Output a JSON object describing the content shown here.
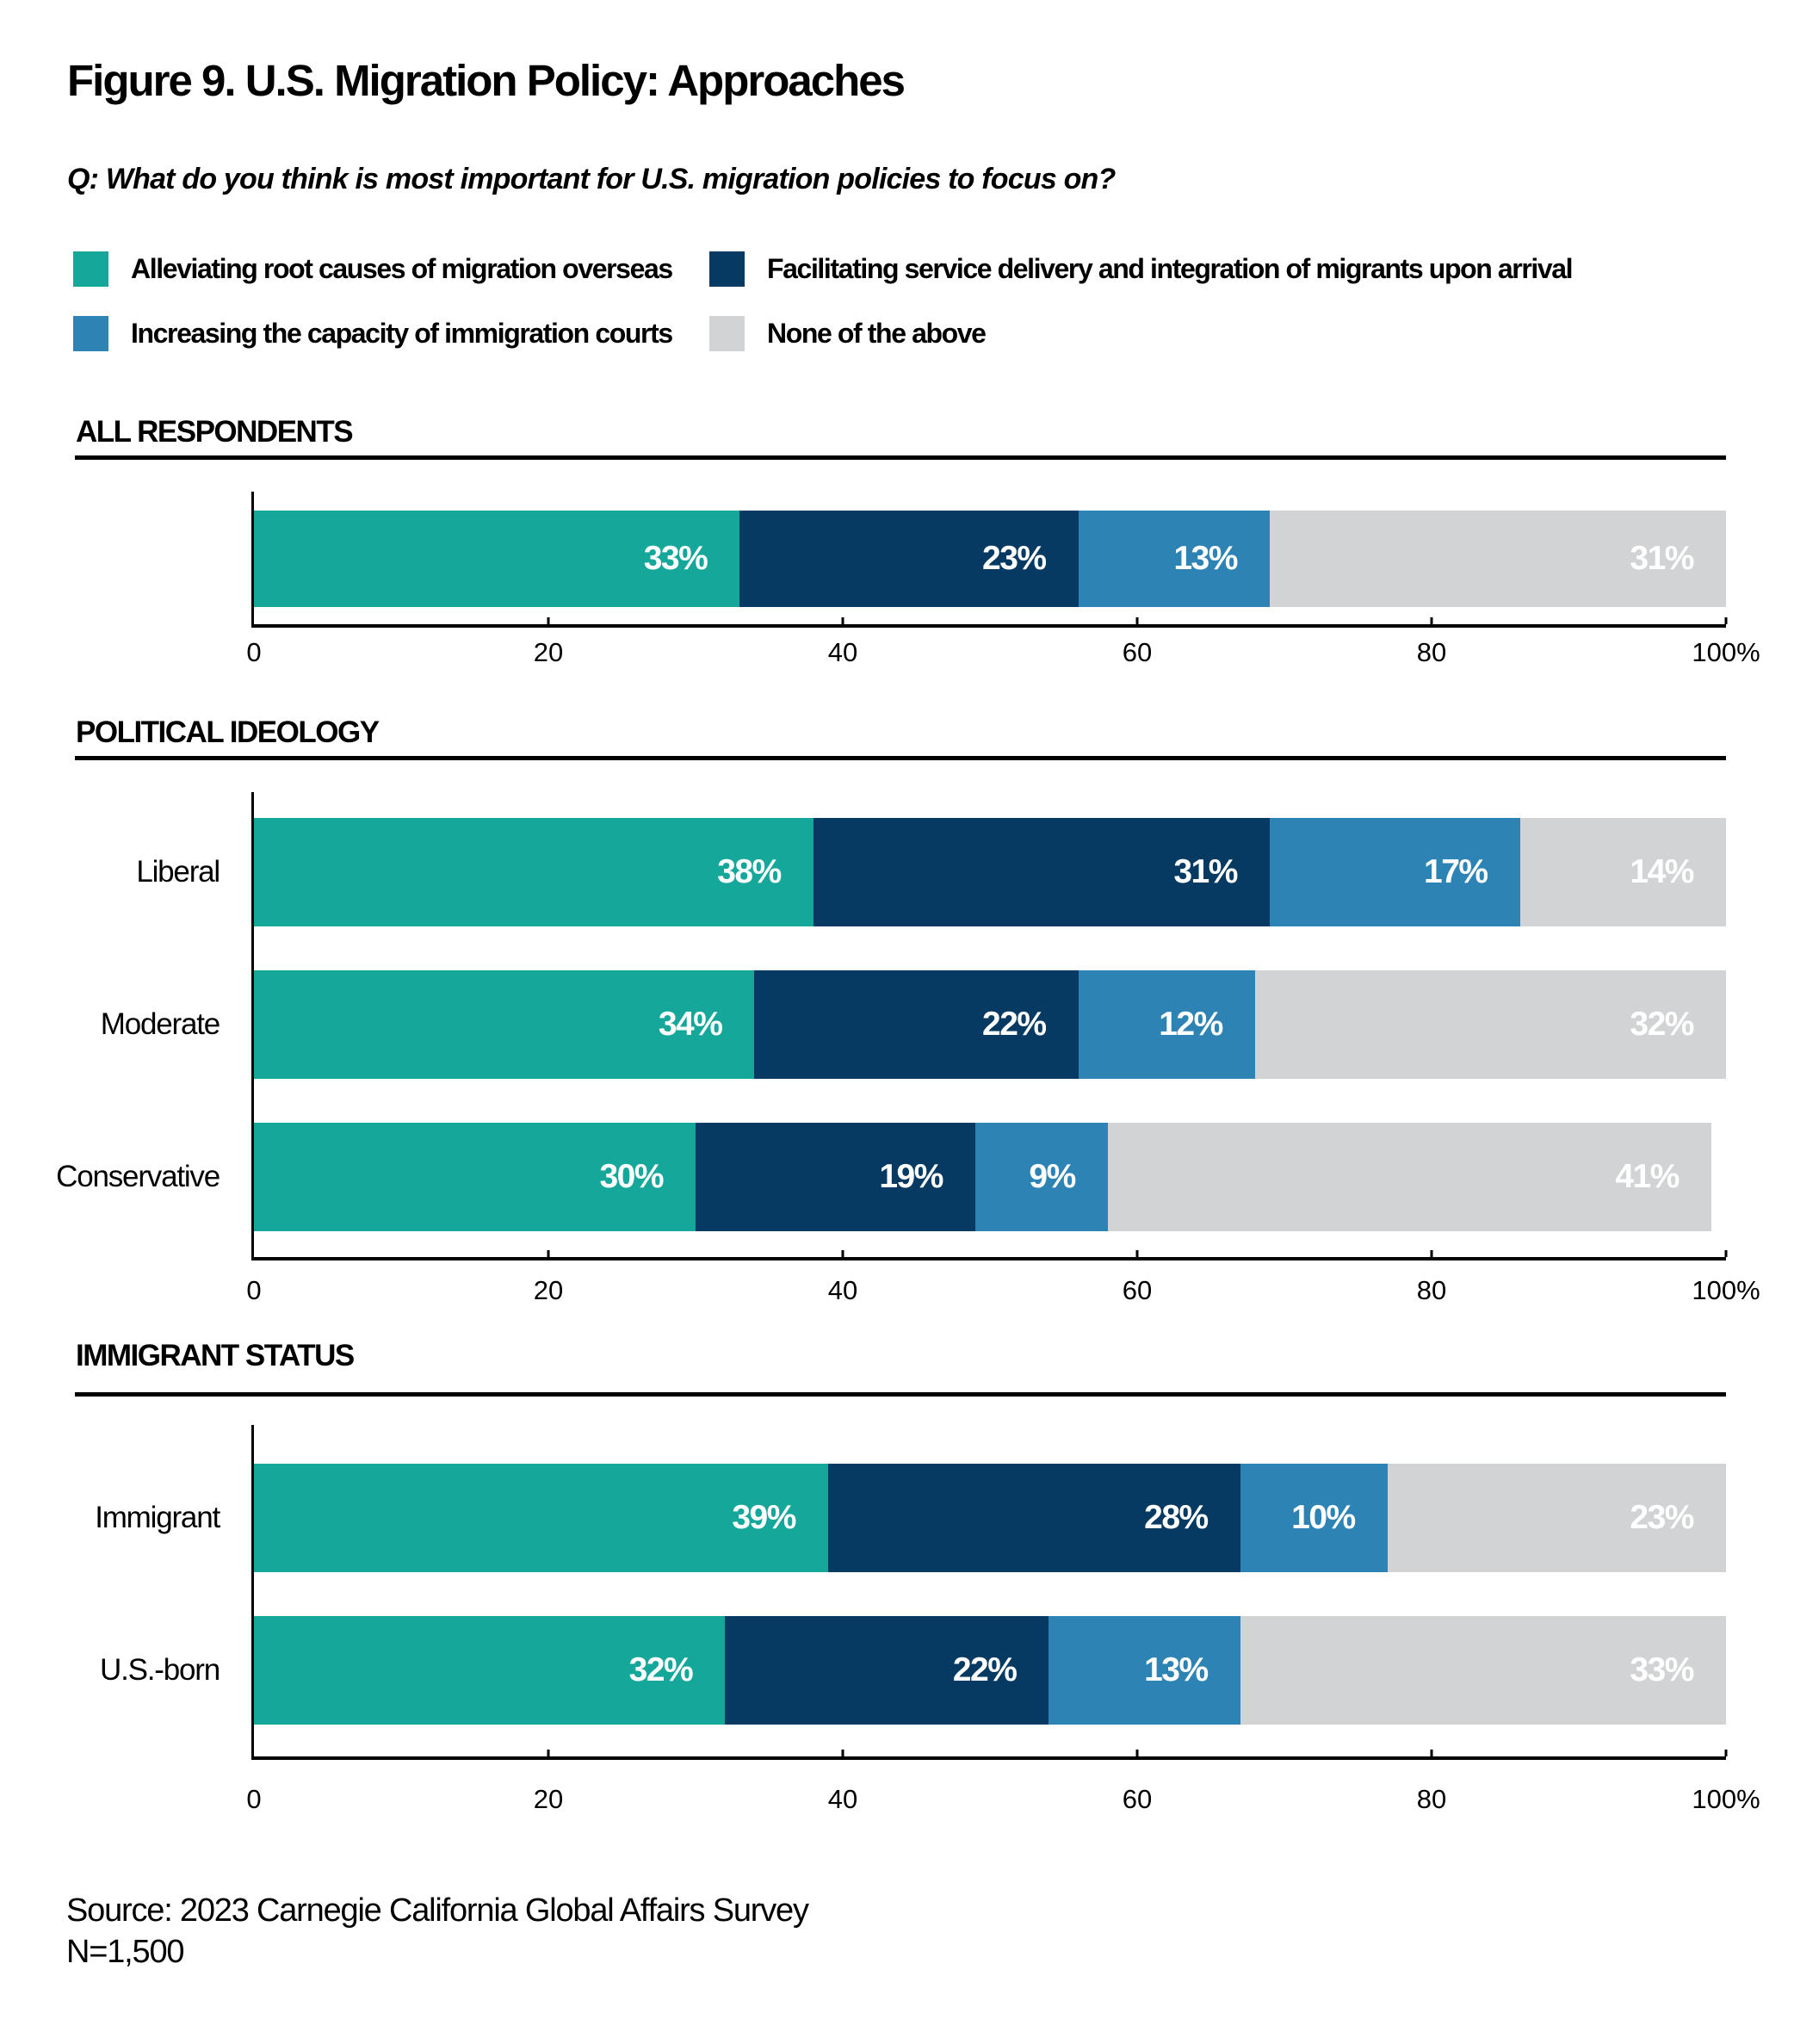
{
  "title": "Figure 9. U.S. Migration Policy: Approaches",
  "question": "Q: What do you think is most important for U.S. migration policies to focus on?",
  "legend": {
    "items": [
      {
        "label": "Alleviating root causes of migration overseas",
        "color": "#14A79A"
      },
      {
        "label": "Facilitating service delivery and integration of migrants upon arrival",
        "color": "#063A62"
      },
      {
        "label": "Increasing the capacity of immigration courts",
        "color": "#2E83B5"
      },
      {
        "label": "None of the above",
        "color": "#D1D3D4"
      }
    ]
  },
  "footer": {
    "source_line": "Source: 2023 Carnegie California Global Affairs Survey",
    "n_line": "N=1,500"
  },
  "chart_data": [
    {
      "type": "bar",
      "stacked": true,
      "orientation": "horizontal",
      "title": "ALL RESPONDENTS",
      "categories": [
        ""
      ],
      "series": [
        {
          "name": "Alleviating root causes of migration overseas",
          "values": [
            33
          ]
        },
        {
          "name": "Facilitating service delivery and integration of migrants upon arrival",
          "values": [
            23
          ]
        },
        {
          "name": "Increasing the capacity of immigration courts",
          "values": [
            13
          ]
        },
        {
          "name": "None of the above",
          "values": [
            31
          ]
        }
      ],
      "value_suffix": "%",
      "xlim": [
        0,
        100
      ],
      "x_tick_values": [
        0,
        20,
        40,
        60,
        80,
        100
      ],
      "x_tick_labels": [
        "0",
        "20",
        "40",
        "60",
        "80",
        "100%"
      ],
      "grid": false,
      "legend_position": "top"
    },
    {
      "type": "bar",
      "stacked": true,
      "orientation": "horizontal",
      "title": "POLITICAL IDEOLOGY",
      "categories": [
        "Liberal",
        "Moderate",
        "Conservative"
      ],
      "series": [
        {
          "name": "Alleviating root causes of migration overseas",
          "values": [
            38,
            34,
            30
          ]
        },
        {
          "name": "Facilitating service delivery and integration of migrants upon arrival",
          "values": [
            31,
            22,
            19
          ]
        },
        {
          "name": "Increasing the capacity of immigration courts",
          "values": [
            17,
            12,
            9
          ]
        },
        {
          "name": "None of the above",
          "values": [
            14,
            32,
            41
          ]
        }
      ],
      "value_suffix": "%",
      "xlim": [
        0,
        100
      ],
      "x_tick_values": [
        0,
        20,
        40,
        60,
        80,
        100
      ],
      "x_tick_labels": [
        "0",
        "20",
        "40",
        "60",
        "80",
        "100%"
      ],
      "grid": false,
      "legend_position": "top"
    },
    {
      "type": "bar",
      "stacked": true,
      "orientation": "horizontal",
      "title": "IMMIGRANT STATUS",
      "categories": [
        "Immigrant",
        "U.S.-born"
      ],
      "series": [
        {
          "name": "Alleviating root causes of migration overseas",
          "values": [
            39,
            32
          ]
        },
        {
          "name": "Facilitating service delivery and integration of migrants upon arrival",
          "values": [
            28,
            22
          ]
        },
        {
          "name": "Increasing the capacity of immigration courts",
          "values": [
            10,
            13
          ]
        },
        {
          "name": "None of the above",
          "values": [
            23,
            33
          ]
        }
      ],
      "value_suffix": "%",
      "xlim": [
        0,
        100
      ],
      "x_tick_values": [
        0,
        20,
        40,
        60,
        80,
        100
      ],
      "x_tick_labels": [
        "0",
        "20",
        "40",
        "60",
        "80",
        "100%"
      ],
      "grid": false,
      "legend_position": "top"
    }
  ]
}
